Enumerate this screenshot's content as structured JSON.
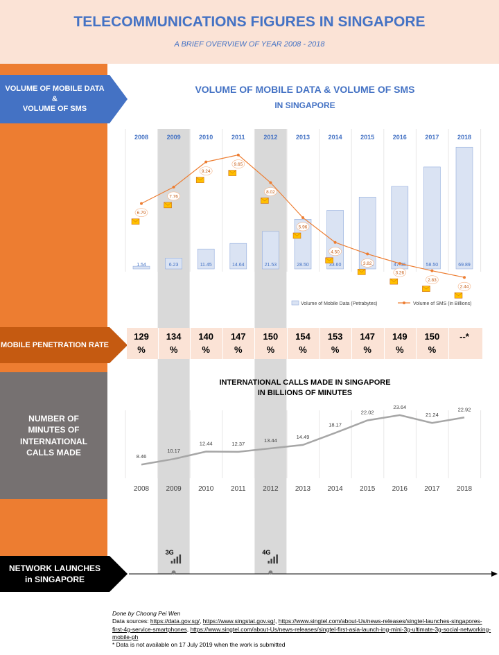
{
  "header": {
    "title": "TELECOMMUNICATIONS FIGURES IN SINGAPORE",
    "subtitle": "A BRIEF OVERVIEW OF YEAR 2008  - 2018"
  },
  "sections": {
    "mobile_data": "VOLUME OF MOBILE DATA\n&\nVOLUME OF SMS",
    "penetration": "MOBILE PENETRATION RATE",
    "intl_calls": "NUMBER OF MINUTES OF INTERNATIONAL CALLS MADE",
    "network": "NETWORK LAUNCHES in SINGAPORE"
  },
  "colors": {
    "header_bg": "#fbe3d6",
    "orange": "#ed7d31",
    "blue": "#4472c4",
    "dark_orange": "#c55a11",
    "gray_label": "#767171",
    "bar_fill": "#dae3f3",
    "bar_stroke": "#8faadc",
    "highlight_column": "#d9d9d9",
    "intl_line": "#a6a6a6"
  },
  "highlight_years": [
    "2009",
    "2012"
  ],
  "chart_data": [
    {
      "type": "bar",
      "title": "VOLUME OF MOBILE DATA & VOLUME OF SMS",
      "subtitle": "IN SINGAPORE",
      "categories": [
        "2008",
        "2009",
        "2010",
        "2011",
        "2012",
        "2013",
        "2014",
        "2015",
        "2016",
        "2017",
        "2018"
      ],
      "series": [
        {
          "name": "Volume of Mobile Data (Petrabytes)",
          "type": "bar",
          "values": [
            1.54,
            6.23,
            11.45,
            14.64,
            21.53,
            28.5,
            33.6,
            41.25,
            47.36,
            58.5,
            69.89
          ],
          "labels": [
            "1.54",
            "6.23",
            "11.45",
            "14.64",
            "21.53",
            "28.50",
            "33.60",
            "41.25",
            "47.36",
            "58.50",
            "69.89"
          ]
        },
        {
          "name": "Volume of SMS (in Billions)",
          "type": "line",
          "values": [
            6.79,
            7.76,
            9.24,
            9.65,
            8.02,
            5.96,
            4.5,
            3.82,
            3.26,
            2.83,
            2.44
          ],
          "labels": [
            "6.79",
            "7.76",
            "9.24",
            "9.65",
            "8.02",
            "5.96",
            "4.50",
            "3.82",
            "3.26",
            "2.83",
            "2.44"
          ]
        }
      ],
      "legend_position": "bottom-right",
      "grid": false
    },
    {
      "type": "table",
      "title": "MOBILE PENETRATION RATE",
      "categories": [
        "2008",
        "2009",
        "2010",
        "2011",
        "2012",
        "2013",
        "2014",
        "2015",
        "2016",
        "2017",
        "2018"
      ],
      "values": [
        129,
        134,
        140,
        147,
        150,
        154,
        153,
        147,
        149,
        150,
        null
      ],
      "cells": [
        [
          "129",
          "%"
        ],
        [
          "134",
          "%"
        ],
        [
          "140",
          "%"
        ],
        [
          "147",
          "%"
        ],
        [
          "150",
          "%"
        ],
        [
          "154",
          "%"
        ],
        [
          "153",
          "%"
        ],
        [
          "147",
          "%"
        ],
        [
          "149",
          "%"
        ],
        [
          "150",
          "%"
        ],
        [
          "--*",
          ""
        ]
      ]
    },
    {
      "type": "line",
      "title": "INTERNATIONAL CALLS MADE IN SINGAPORE",
      "subtitle": "IN BILLIONS OF MINUTES",
      "categories": [
        "2008",
        "2009",
        "2010",
        "2011",
        "2012",
        "2013",
        "2014",
        "2015",
        "2016",
        "2017",
        "2018"
      ],
      "values": [
        8.46,
        10.17,
        12.44,
        12.37,
        13.44,
        14.49,
        18.17,
        22.02,
        23.64,
        21.24,
        22.92
      ],
      "labels": [
        "8.46",
        "10.17",
        "12.44",
        "12.37",
        "13.44",
        "14.49",
        "18.17",
        "22.02",
        "23.64",
        "21.24",
        "22.92"
      ],
      "grid": false
    }
  ],
  "network_launches": [
    {
      "year": "2009",
      "label": "3G"
    },
    {
      "year": "2012",
      "label": "4G"
    }
  ],
  "credits": {
    "author": "Done by Choong Pei Wen",
    "sources_prefix": "Data sources: ",
    "link1": "https://data.gov.sg/",
    "link2": "https://www.singstat.gov.sg/",
    "link3": "https://www.singtel.com/about-Us/news-releases/singtel-launches-singapores-first-4g-service-smartphones",
    "link4": "https://www.singtel.com/about-Us/news-releases/singtel-first-asia-launch-ing-mini-3g-ultimate-3g-social-networking-mobile-ph",
    "note": "* Data is not available on 17 July 2019 when the work is submitted"
  }
}
